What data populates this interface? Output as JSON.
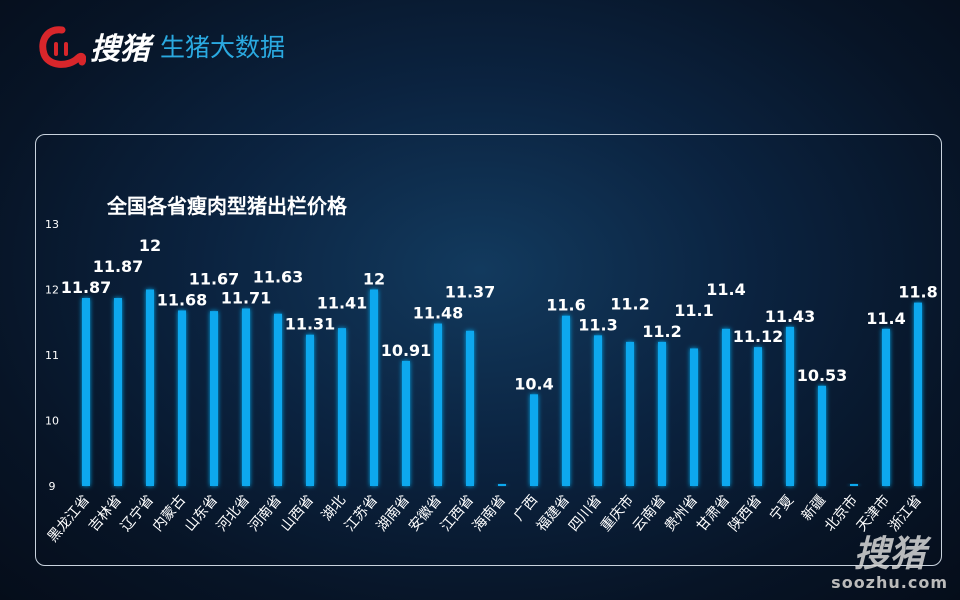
{
  "header": {
    "brand": "搜猪",
    "subtitle": "生猪大数据"
  },
  "watermark": {
    "brand": "搜猪",
    "url": "soozhu.com"
  },
  "colors": {
    "bar": "#0aa8ee",
    "logo_red": "#d8262b",
    "subtitle": "#2aa9e0"
  },
  "chart_data": {
    "type": "bar",
    "title": "全国各省瘦肉型猪出栏价格",
    "xlabel": "",
    "ylabel": "",
    "ylim": [
      9,
      13
    ],
    "yticks": [
      9,
      10,
      11,
      12,
      13
    ],
    "grid": false,
    "categories": [
      "黑龙江省",
      "吉林省",
      "辽宁省",
      "内蒙古",
      "山东省",
      "河北省",
      "河南省",
      "山西省",
      "湖北",
      "江苏省",
      "湖南省",
      "安徽省",
      "江西省",
      "海南省",
      "广西",
      "福建省",
      "四川省",
      "重庆市",
      "云南省",
      "贵州省",
      "甘肃省",
      "陕西省",
      "宁夏",
      "新疆",
      "北京市",
      "天津市",
      "浙江省"
    ],
    "values": [
      11.87,
      11.87,
      12,
      11.68,
      11.67,
      11.71,
      11.63,
      11.31,
      11.41,
      12,
      10.91,
      11.48,
      11.37,
      null,
      10.4,
      11.6,
      11.3,
      11.2,
      11.2,
      11.1,
      11.4,
      11.12,
      11.43,
      10.53,
      null,
      11.4,
      11.8
    ]
  }
}
